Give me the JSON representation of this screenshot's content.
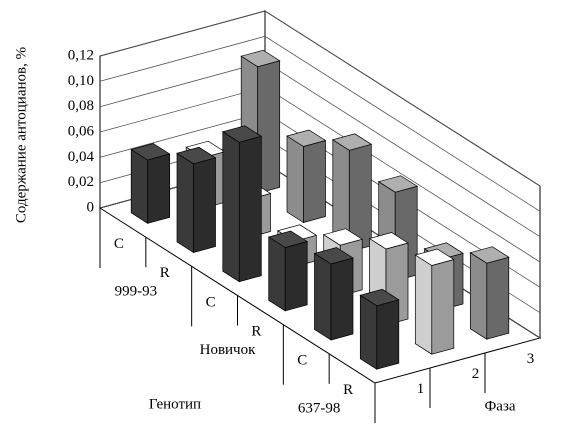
{
  "chart_data": {
    "type": "bar3d",
    "y_label": "Содержание антоцианов, %",
    "x_label": "Генотип",
    "z_label": "Фаза",
    "categories": [
      "C",
      "R",
      "C",
      "R",
      "C",
      "R"
    ],
    "groups": [
      "999-93",
      "Новичок",
      "637-98"
    ],
    "series": [
      {
        "name": "1",
        "color": "#3a3a3a",
        "values": [
          0.05,
          0.07,
          0.11,
          0.05,
          0.06,
          0.05
        ]
      },
      {
        "name": "2",
        "color": "#cfcfcf",
        "values": [
          0.04,
          0.03,
          0.02,
          0.04,
          0.06,
          0.07
        ]
      },
      {
        "name": "3",
        "color": "#8c8c8c",
        "values": [
          0.1,
          0.06,
          0.08,
          0.07,
          0.04,
          0.06
        ]
      }
    ],
    "ylim": [
      0,
      0.12
    ],
    "yticks": [
      {
        "value": 0,
        "label": "0"
      },
      {
        "value": 0.02,
        "label": "0,02"
      },
      {
        "value": 0.04,
        "label": "0,04"
      },
      {
        "value": 0.06,
        "label": "0,06"
      },
      {
        "value": 0.08,
        "label": "0,08"
      },
      {
        "value": 0.1,
        "label": "0,10"
      },
      {
        "value": 0.12,
        "label": "0,12"
      }
    ],
    "grid": true
  }
}
